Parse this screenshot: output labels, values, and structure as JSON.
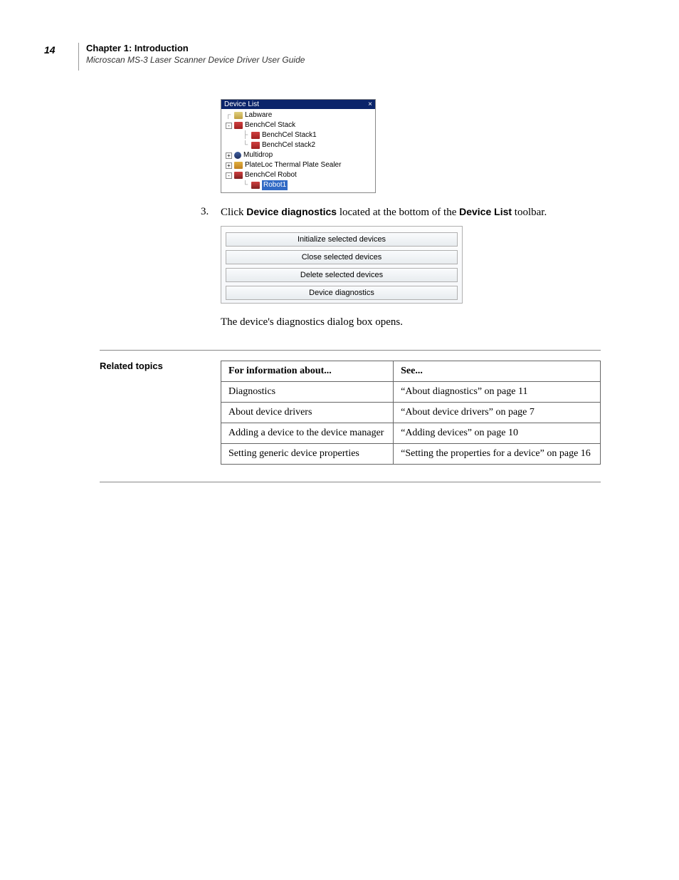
{
  "page_number": "14",
  "chapter_title": "Chapter 1: Introduction",
  "subtitle": "Microscan MS-3 Laser Scanner Device Driver User Guide",
  "device_list": {
    "title": "Device List",
    "items": {
      "labware": "Labware",
      "benchcel_stack": "BenchCel Stack",
      "benchcel_stack1": "BenchCel Stack1",
      "benchcel_stack2": "BenchCel stack2",
      "multidrop": "Multidrop",
      "plateloc": "PlateLoc Thermal Plate Sealer",
      "benchcel_robot": "BenchCel Robot",
      "robot1": "Robot1"
    }
  },
  "step": {
    "number": "3.",
    "text_pre": "Click ",
    "diag": "Device diagnostics",
    "text_mid": " located at the bottom of the ",
    "list": "Device List",
    "text_post": " toolbar."
  },
  "toolbar_buttons": {
    "b1": "Initialize selected devices",
    "b2": "Close selected devices",
    "b3": "Delete selected devices",
    "b4": "Device diagnostics"
  },
  "result_text": "The device's diagnostics dialog box opens.",
  "related_label": "Related topics",
  "table": {
    "h1": "For information about...",
    "h2": "See...",
    "r1c1": "Diagnostics",
    "r1c2": "“About diagnostics” on page 11",
    "r2c1": "About device drivers",
    "r2c2": "“About device drivers” on page 7",
    "r3c1": "Adding a device to the device manager",
    "r3c2": "“Adding devices” on page 10",
    "r4c1": "Setting generic device properties",
    "r4c2": "“Setting the properties for a device” on page 16"
  }
}
